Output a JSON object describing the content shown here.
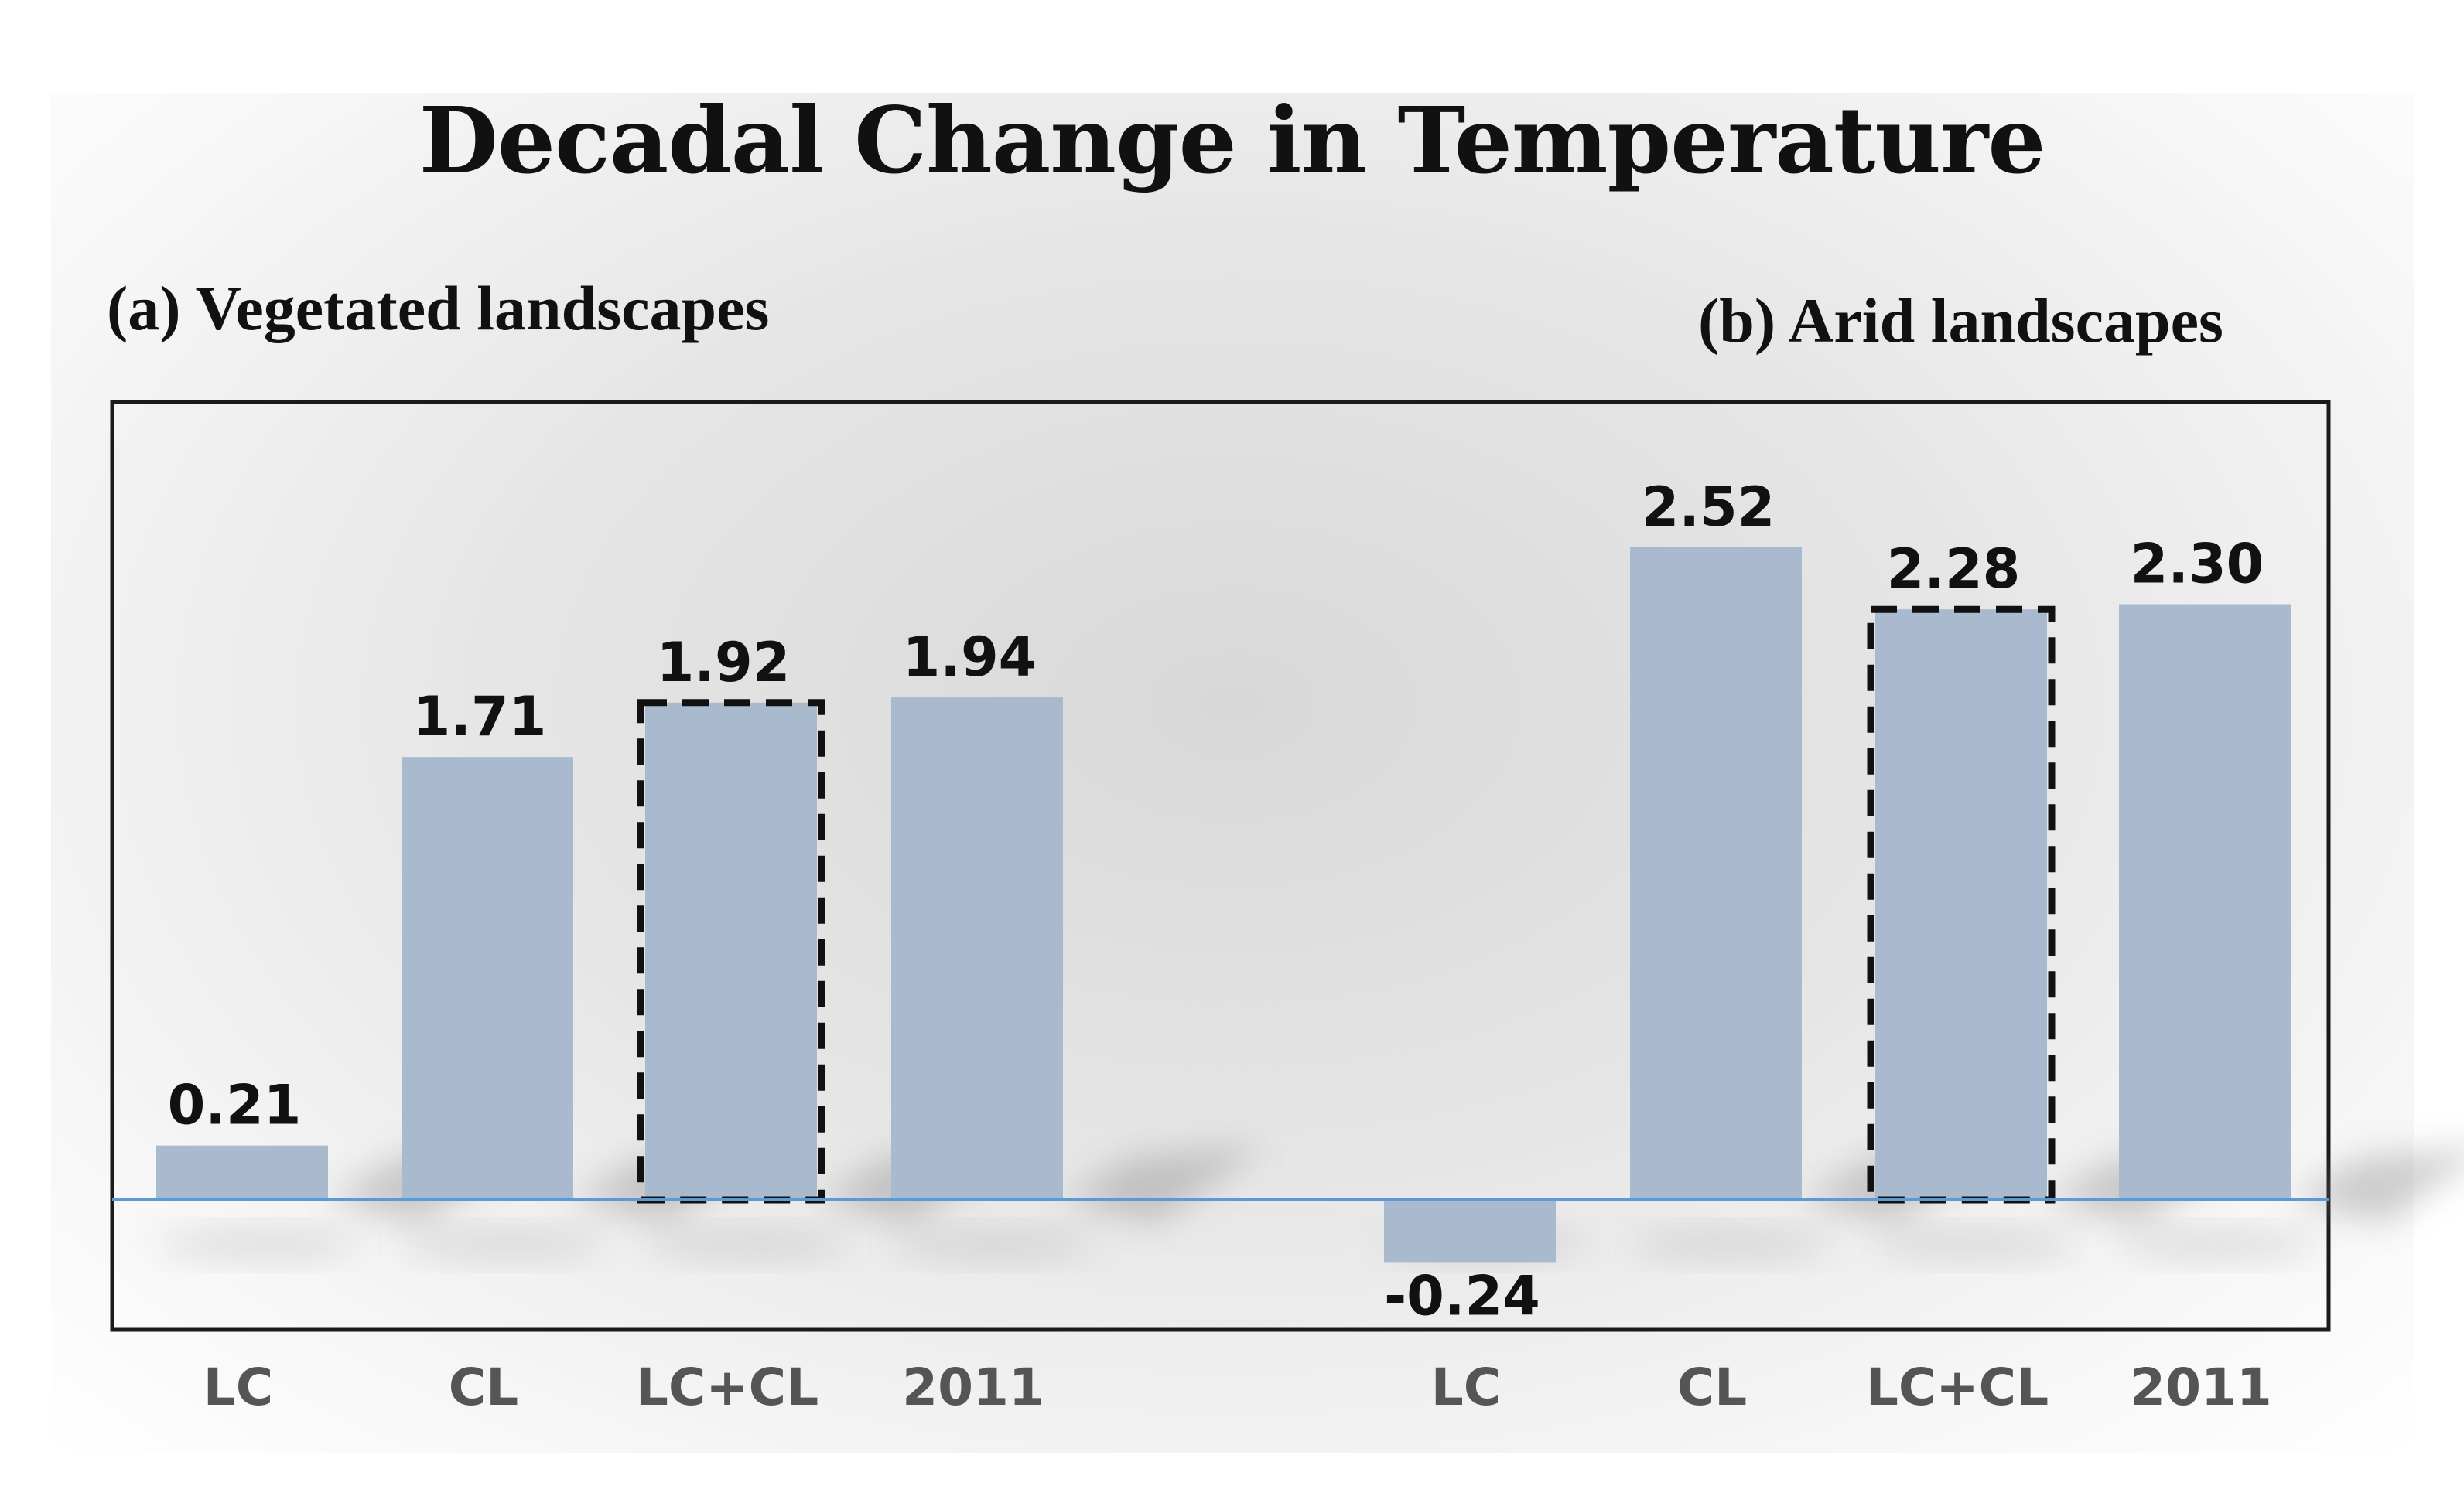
{
  "title": "Decadal Change in Temperature",
  "panels": {
    "a_title": "(a) Vegetated landscapes",
    "b_title": "(b) Arid landscapes"
  },
  "colors": {
    "bar": "#a9b9ce",
    "zero_line": "#5b9bd5",
    "frame": "#1a1a1a",
    "highlight_border": "#111111"
  },
  "chart_data": {
    "type": "bar",
    "title": "Decadal Change in Temperature",
    "xlabel": "",
    "ylabel": "",
    "ylim": [
      -0.45,
      2.95
    ],
    "grid": false,
    "groups": [
      {
        "name": "(a) Vegetated landscapes",
        "categories": [
          "LC",
          "CL",
          "LC+CL",
          "2011"
        ],
        "values": [
          0.21,
          1.71,
          1.92,
          1.94
        ],
        "labels": [
          "0.21",
          "1.71",
          "1.92",
          "1.94"
        ],
        "highlighted": "LC+CL"
      },
      {
        "name": "(b) Arid landscapes",
        "categories": [
          "LC",
          "CL",
          "LC+CL",
          "2011"
        ],
        "values": [
          -0.24,
          2.52,
          2.28,
          2.3
        ],
        "labels": [
          "-0.24",
          "2.52",
          "2.28",
          "2.30"
        ],
        "highlighted": "LC+CL"
      }
    ]
  }
}
